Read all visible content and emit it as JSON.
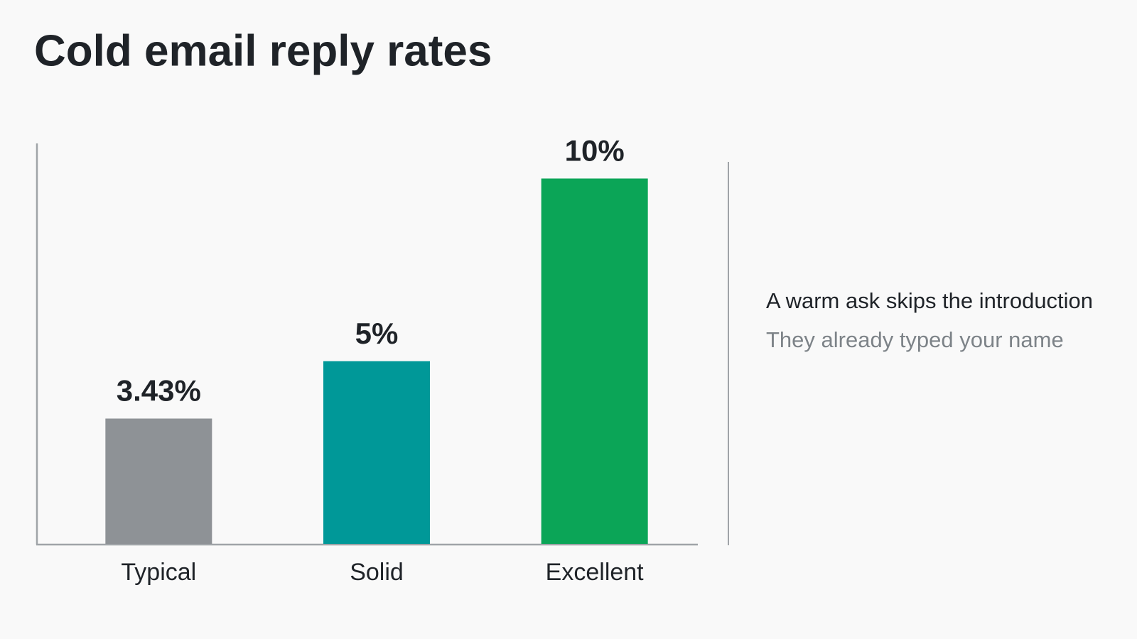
{
  "chart_data": {
    "type": "bar",
    "title": "Cold email reply rates",
    "categories": [
      "Typical",
      "Solid",
      "Excellent"
    ],
    "values": [
      3.43,
      5,
      10
    ],
    "value_labels": [
      "3.43%",
      "5%",
      "10%"
    ],
    "colors": [
      "#8e9296",
      "#009898",
      "#0ba557"
    ],
    "ylim": [
      0,
      11
    ],
    "annotations": [
      "A warm ask skips the introduction",
      "They already typed your name"
    ]
  }
}
